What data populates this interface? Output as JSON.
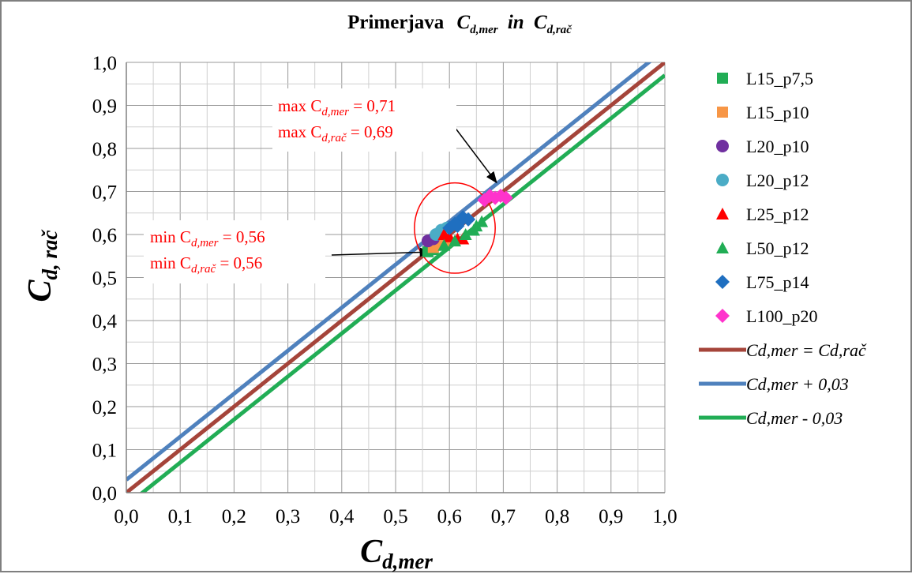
{
  "chart_data": {
    "type": "scatter",
    "title": "Primerjava",
    "title_italic": "C",
    "title_mer_sub": "d,mer",
    "title_mid": "in",
    "title_rac_sub": "d,rač",
    "xlabel_main": "C",
    "xlabel_sub": "d,mer",
    "ylabel_main": "C",
    "ylabel_sub": "d, rač",
    "xlim": [
      0,
      1.0
    ],
    "ylim": [
      0,
      1.0
    ],
    "major_step": 0.1,
    "minor_step": 0.05,
    "grid": true,
    "x_ticks": [
      "0,0",
      "0,1",
      "0,2",
      "0,3",
      "0,4",
      "0,5",
      "0,6",
      "0,7",
      "0,8",
      "0,9",
      "1,0"
    ],
    "y_ticks": [
      "0,0",
      "0,1",
      "0,2",
      "0,3",
      "0,4",
      "0,5",
      "0,6",
      "0,7",
      "0,8",
      "0,9",
      "1,0"
    ],
    "legend_position": "right",
    "series": [
      {
        "name": "L15_p7,5",
        "marker": "square",
        "color": "#21ad55",
        "points": [
          [
            0.56,
            0.56
          ],
          [
            0.57,
            0.565
          ],
          [
            0.58,
            0.575
          ],
          [
            0.59,
            0.58
          ]
        ]
      },
      {
        "name": "L15_p10",
        "marker": "square",
        "color": "#f79646",
        "points": [
          [
            0.57,
            0.57
          ],
          [
            0.585,
            0.58
          ],
          [
            0.595,
            0.585
          ]
        ]
      },
      {
        "name": "L20_p10",
        "marker": "circle",
        "color": "#7030a0",
        "points": [
          [
            0.56,
            0.585
          ],
          [
            0.57,
            0.59
          ]
        ]
      },
      {
        "name": "L20_p12",
        "marker": "circle",
        "color": "#4bacc6",
        "points": [
          [
            0.575,
            0.6
          ],
          [
            0.585,
            0.61
          ],
          [
            0.595,
            0.615
          ]
        ]
      },
      {
        "name": "L25_p12",
        "marker": "triangle",
        "color": "#ff0000",
        "points": [
          [
            0.59,
            0.6
          ],
          [
            0.6,
            0.595
          ],
          [
            0.615,
            0.59
          ],
          [
            0.625,
            0.59
          ]
        ]
      },
      {
        "name": "L50_p12",
        "marker": "triangle",
        "color": "#21ad55",
        "points": [
          [
            0.59,
            0.575
          ],
          [
            0.61,
            0.585
          ],
          [
            0.63,
            0.6
          ],
          [
            0.645,
            0.61
          ],
          [
            0.66,
            0.63
          ],
          [
            0.65,
            0.62
          ]
        ]
      },
      {
        "name": "L75_p14",
        "marker": "diamond",
        "color": "#1f6fc0",
        "points": [
          [
            0.6,
            0.615
          ],
          [
            0.61,
            0.625
          ],
          [
            0.62,
            0.63
          ],
          [
            0.625,
            0.64
          ],
          [
            0.635,
            0.635
          ],
          [
            0.615,
            0.62
          ]
        ]
      },
      {
        "name": "L100_p20",
        "marker": "diamond",
        "color": "#ff33cc",
        "points": [
          [
            0.665,
            0.68
          ],
          [
            0.675,
            0.69
          ],
          [
            0.685,
            0.685
          ],
          [
            0.695,
            0.69
          ],
          [
            0.705,
            0.685
          ]
        ]
      }
    ],
    "lines": [
      {
        "label_main": "Cd,mer = Cd,rač",
        "color": "#a5443a",
        "offset": 0.0
      },
      {
        "label_main": "Cd,mer + 0,03",
        "color": "#4f81bd",
        "offset": 0.03
      },
      {
        "label_main": "Cd,mer - 0,03",
        "color": "#21ad55",
        "offset": -0.03
      }
    ],
    "annotations": {
      "max_mer_label": "max C",
      "max_mer_sub": "d,mer",
      "max_mer_value": " = 0,71",
      "max_rac_label": "max C",
      "max_rac_sub": "d,rač",
      "max_rac_value": " = 0,69",
      "min_mer_label": "min C",
      "min_mer_sub": "d,mer",
      "min_mer_value": " = 0,56",
      "min_rac_label": "min C",
      "min_rac_sub": "d,rač",
      "min_rac_value": " = 0,56",
      "annotation_color": "#ff0000",
      "ellipse": {
        "cx": 0.61,
        "cy": 0.615,
        "rx": 0.075,
        "ry": 0.105
      },
      "max_arrow_tip": [
        0.705,
        0.695
      ],
      "min_arrow_tip": [
        0.55,
        0.565
      ]
    }
  }
}
